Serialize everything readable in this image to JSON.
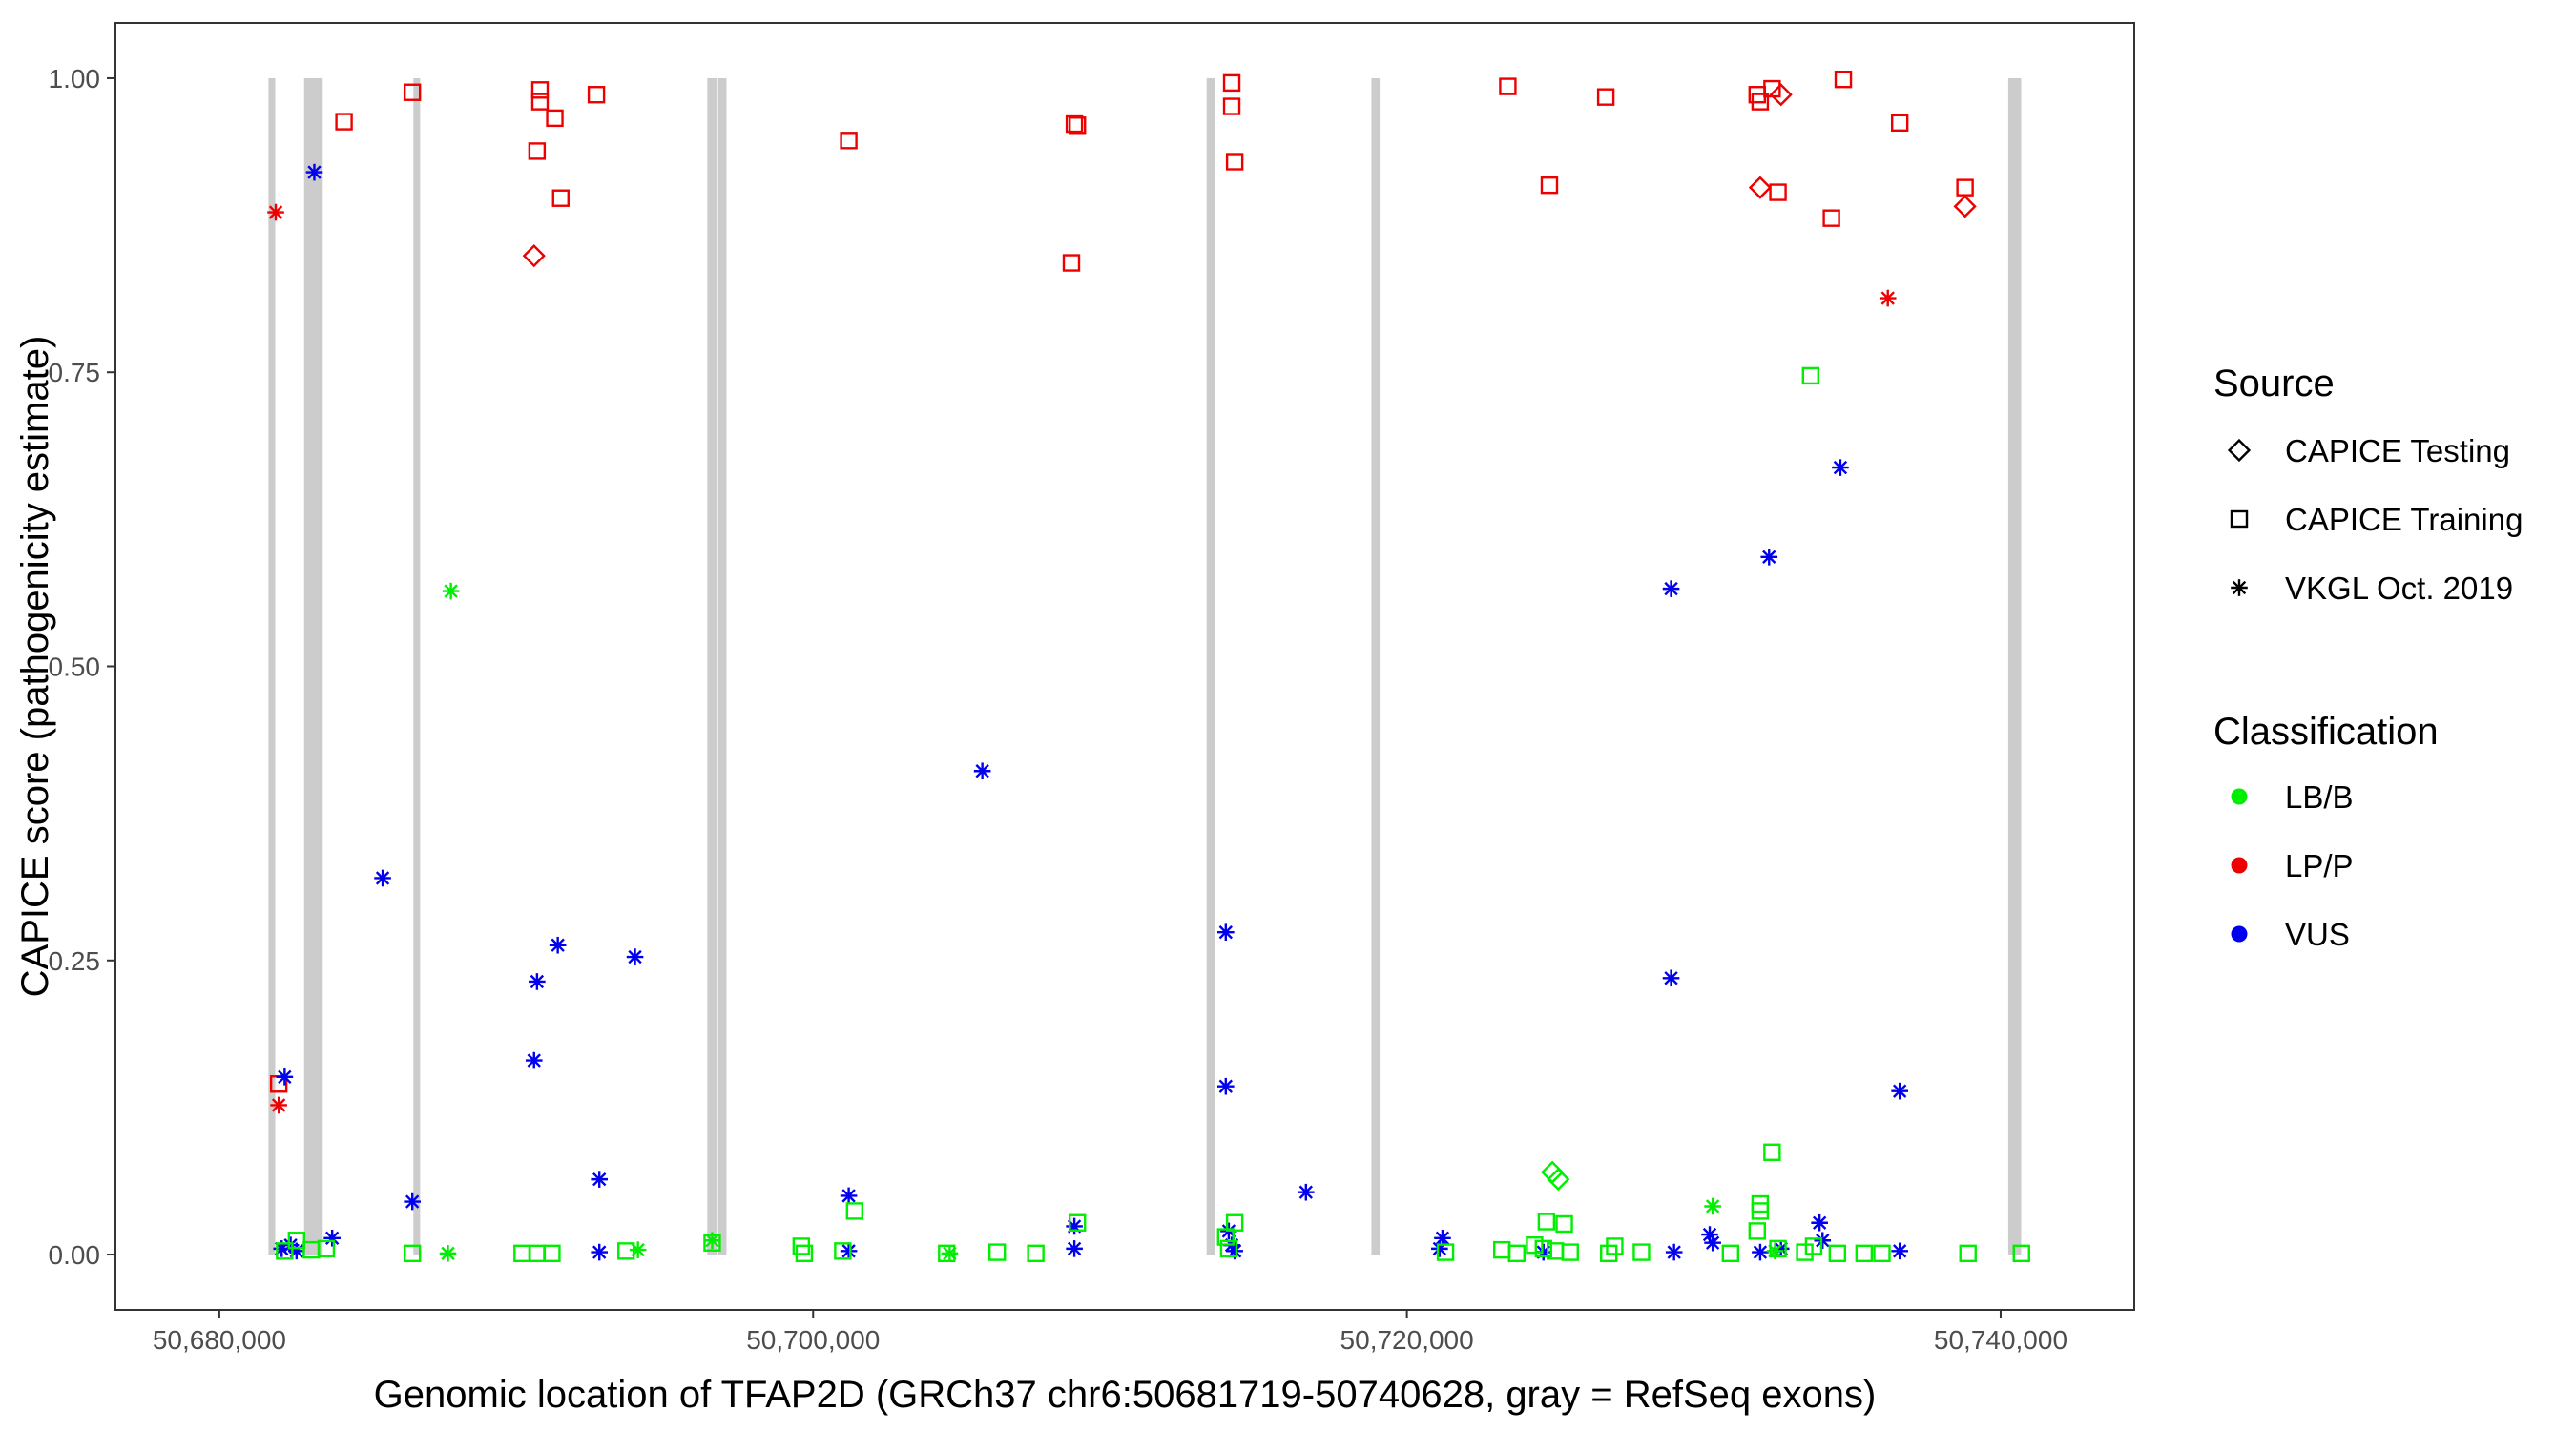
{
  "chart_data": {
    "type": "scatter",
    "title": "",
    "xlabel": "Genomic location of TFAP2D (GRCh37 chr6:50681719-50740628, gray = RefSeq exons)",
    "ylabel": "CAPICE score (pathogenicity estimate)",
    "xlim": [
      50676500,
      50744500
    ],
    "ylim": [
      -0.047,
      1.047
    ],
    "x_ticks": [
      50680000,
      50700000,
      50720000,
      50740000
    ],
    "x_tick_labels": [
      "50,680,000",
      "50,700,000",
      "50,720,000",
      "50,740,000"
    ],
    "y_ticks": [
      0,
      0.25,
      0.5,
      0.75,
      1
    ],
    "y_tick_labels": [
      "0.00",
      "0.25",
      "0.50",
      "0.75",
      "1.00"
    ],
    "grid": false,
    "exons": [
      {
        "start": 50681719,
        "end": 50681819
      },
      {
        "start": 50682919,
        "end": 50683419
      },
      {
        "start": 50686599,
        "end": 50686699
      },
      {
        "start": 50696499,
        "end": 50696719
      },
      {
        "start": 50696869,
        "end": 50697019
      },
      {
        "start": 50713319,
        "end": 50713469
      },
      {
        "start": 50718869,
        "end": 50719019
      },
      {
        "start": 50740319,
        "end": 50740628
      }
    ],
    "legend": {
      "position": "right",
      "source_title": "Source",
      "source_items": [
        {
          "label": "CAPICE Testing",
          "shape": "diamond"
        },
        {
          "label": "CAPICE Training",
          "shape": "square"
        },
        {
          "label": "VKGL Oct. 2019",
          "shape": "asterisk"
        }
      ],
      "class_title": "Classification",
      "class_items": [
        {
          "label": "LB/B",
          "color": "#00ee00"
        },
        {
          "label": "LP/P",
          "color": "#ee0000"
        },
        {
          "label": "VUS",
          "color": "#0000ee"
        }
      ]
    },
    "colors": {
      "LB/B": "#00ee00",
      "LP/P": "#ee0000",
      "VUS": "#0000ee",
      "exon": "#cccccc"
    },
    "series": [
      {
        "name": "LP/P Training",
        "classification": "LP/P",
        "source": "CAPICE Training",
        "points": [
          [
            50684200,
            0.963
          ],
          [
            50686500,
            0.988
          ],
          [
            50690800,
            0.99
          ],
          [
            50690800,
            0.98
          ],
          [
            50691300,
            0.966
          ],
          [
            50690700,
            0.938
          ],
          [
            50691500,
            0.898
          ],
          [
            50692700,
            0.986
          ],
          [
            50701200,
            0.947
          ],
          [
            50708800,
            0.961
          ],
          [
            50708900,
            0.96
          ],
          [
            50708700,
            0.843
          ],
          [
            50714100,
            0.996
          ],
          [
            50714100,
            0.976
          ],
          [
            50714200,
            0.929
          ],
          [
            50723400,
            0.993
          ],
          [
            50724800,
            0.909
          ],
          [
            50726700,
            0.984
          ],
          [
            50731800,
            0.986
          ],
          [
            50731900,
            0.98
          ],
          [
            50732300,
            0.991
          ],
          [
            50732500,
            0.903
          ],
          [
            50734300,
            0.881
          ],
          [
            50734700,
            0.999
          ],
          [
            50736600,
            0.962
          ],
          [
            50738800,
            0.907
          ],
          [
            50682000,
            0.145
          ]
        ]
      },
      {
        "name": "LP/P Testing",
        "classification": "LP/P",
        "source": "CAPICE Testing",
        "points": [
          [
            50690600,
            0.849
          ],
          [
            50732600,
            0.986
          ],
          [
            50731900,
            0.907
          ],
          [
            50738800,
            0.891
          ]
        ]
      },
      {
        "name": "LP/P VKGL",
        "classification": "LP/P",
        "source": "VKGL Oct. 2019",
        "points": [
          [
            50681900,
            0.886
          ],
          [
            50682000,
            0.127
          ],
          [
            50736200,
            0.813
          ]
        ]
      },
      {
        "name": "VUS VKGL",
        "classification": "VUS",
        "source": "VKGL Oct. 2019",
        "points": [
          [
            50683200,
            0.92
          ],
          [
            50682200,
            0.151
          ],
          [
            50685500,
            0.32
          ],
          [
            50686500,
            0.045
          ],
          [
            50682100,
            0.005
          ],
          [
            50682400,
            0.008
          ],
          [
            50682600,
            0.003
          ],
          [
            50683800,
            0.014
          ],
          [
            50690700,
            0.232
          ],
          [
            50691400,
            0.263
          ],
          [
            50690600,
            0.165
          ],
          [
            50694000,
            0.253
          ],
          [
            50692800,
            0.064
          ],
          [
            50692800,
            0.002
          ],
          [
            50701200,
            0.05
          ],
          [
            50701200,
            0.003
          ],
          [
            50705700,
            0.411
          ],
          [
            50708800,
            0.024
          ],
          [
            50708800,
            0.005
          ],
          [
            50713900,
            0.274
          ],
          [
            50713900,
            0.143
          ],
          [
            50714000,
            0.02
          ],
          [
            50714100,
            0.008
          ],
          [
            50714200,
            0.003
          ],
          [
            50716600,
            0.053
          ],
          [
            50721200,
            0.014
          ],
          [
            50721100,
            0.005
          ],
          [
            50724600,
            0.002
          ],
          [
            50728900,
            0.566
          ],
          [
            50728900,
            0.235
          ],
          [
            50729000,
            0.002
          ],
          [
            50730200,
            0.017
          ],
          [
            50730300,
            0.01
          ],
          [
            50732200,
            0.593
          ],
          [
            50731900,
            0.002
          ],
          [
            50732600,
            0.005
          ],
          [
            50733900,
            0.027
          ],
          [
            50734000,
            0.012
          ],
          [
            50734600,
            0.669
          ],
          [
            50736600,
            0.139
          ],
          [
            50736600,
            0.003
          ]
        ]
      },
      {
        "name": "LB/B VKGL",
        "classification": "LB/B",
        "source": "VKGL Oct. 2019",
        "points": [
          [
            50687800,
            0.564
          ],
          [
            50687700,
            0.001
          ],
          [
            50694100,
            0.004
          ],
          [
            50696600,
            0.012
          ],
          [
            50704600,
            0.001
          ],
          [
            50730300,
            0.041
          ],
          [
            50732400,
            0.003
          ]
        ]
      },
      {
        "name": "LB/B Testing",
        "classification": "LB/B",
        "source": "CAPICE Testing",
        "points": [
          [
            50724900,
            0.07
          ],
          [
            50725100,
            0.064
          ]
        ]
      },
      {
        "name": "LB/B Training",
        "classification": "LB/B",
        "source": "CAPICE Training",
        "points": [
          [
            50733600,
            0.747
          ],
          [
            50732300,
            0.087
          ],
          [
            50731900,
            0.043
          ],
          [
            50731900,
            0.037
          ],
          [
            50731800,
            0.02
          ],
          [
            50682200,
            0.003
          ],
          [
            50682600,
            0.012
          ],
          [
            50683100,
            0.004
          ],
          [
            50683600,
            0.005
          ],
          [
            50686500,
            0.001
          ],
          [
            50690200,
            0.001
          ],
          [
            50690700,
            0.001
          ],
          [
            50691200,
            0.001
          ],
          [
            50693700,
            0.003
          ],
          [
            50696600,
            0.01
          ],
          [
            50699600,
            0.007
          ],
          [
            50699700,
            0.001
          ],
          [
            50701000,
            0.003
          ],
          [
            50701400,
            0.037
          ],
          [
            50704500,
            0.001
          ],
          [
            50706200,
            0.002
          ],
          [
            50707500,
            0.001
          ],
          [
            50708900,
            0.027
          ],
          [
            50713900,
            0.015
          ],
          [
            50714000,
            0.005
          ],
          [
            50714200,
            0.027
          ],
          [
            50721300,
            0.002
          ],
          [
            50723200,
            0.004
          ],
          [
            50723700,
            0.001
          ],
          [
            50724300,
            0.008
          ],
          [
            50724700,
            0.028
          ],
          [
            50725300,
            0.026
          ],
          [
            50724600,
            0.005
          ],
          [
            50725000,
            0.003
          ],
          [
            50725500,
            0.002
          ],
          [
            50726800,
            0.001
          ],
          [
            50727000,
            0.007
          ],
          [
            50727900,
            0.002
          ],
          [
            50730900,
            0.001
          ],
          [
            50732500,
            0.005
          ],
          [
            50733400,
            0.002
          ],
          [
            50733700,
            0.007
          ],
          [
            50734500,
            0.001
          ],
          [
            50735400,
            0.001
          ],
          [
            50736000,
            0.001
          ],
          [
            50738900,
            0.001
          ],
          [
            50740700,
            0.001
          ]
        ]
      }
    ]
  }
}
